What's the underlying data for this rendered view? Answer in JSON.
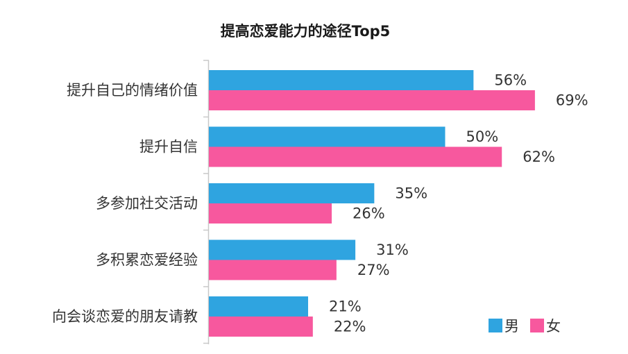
{
  "chart_data": {
    "type": "bar",
    "orientation": "horizontal",
    "title": "提高恋爱能力的途径Top5",
    "categories": [
      "提升自己的情绪价值",
      "提升自信",
      "多参加社交活动",
      "多积累恋爱经验",
      "向会谈恋爱的朋友请教"
    ],
    "series": [
      {
        "name": "男",
        "color": "#2fa4e0",
        "values": [
          56,
          50,
          35,
          31,
          21
        ],
        "labels": [
          "56%",
          "50%",
          "35%",
          "31%",
          "21%"
        ]
      },
      {
        "name": "女",
        "color": "#f7589e",
        "values": [
          69,
          62,
          26,
          27,
          22
        ],
        "labels": [
          "69%",
          "62%",
          "26%",
          "27%",
          "22%"
        ]
      }
    ],
    "xlim": [
      0,
      100
    ],
    "legend": "bottom-right",
    "grid": false
  }
}
